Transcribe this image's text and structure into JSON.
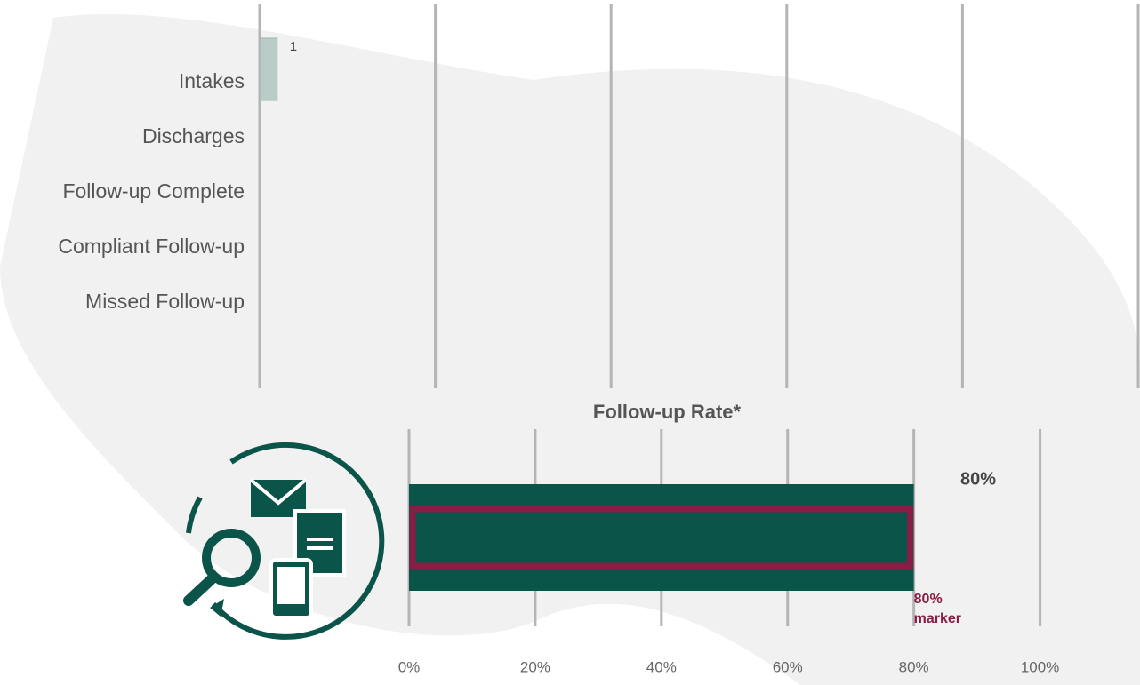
{
  "chart_data": [
    {
      "type": "bar",
      "orientation": "horizontal",
      "categories": [
        "Intakes",
        "Discharges",
        "Follow-up Complete",
        "Compliant Follow-up",
        "Missed Follow-up"
      ],
      "values": [
        1,
        null,
        null,
        null,
        null
      ],
      "value_labels": [
        "1",
        null,
        null,
        null,
        null
      ],
      "color": "#b9ccc7",
      "xlim": [
        0,
        50
      ],
      "xticks": [
        0,
        10,
        20,
        30,
        40,
        50
      ],
      "grid": true
    },
    {
      "type": "bullet",
      "title": "Follow-up Rate*",
      "orientation": "horizontal",
      "values": [
        80
      ],
      "value_labels": [
        "80%"
      ],
      "color": "#0b5449",
      "marker": {
        "value": 80,
        "label_lines": [
          "80%",
          "marker"
        ],
        "color": "#8a1d45"
      },
      "xlim": [
        0,
        115
      ],
      "xticks": [
        {
          "value": 0,
          "label": "0%"
        },
        {
          "value": 20,
          "label": "20%"
        },
        {
          "value": 40,
          "label": "40%"
        },
        {
          "value": 60,
          "label": "60%"
        },
        {
          "value": 80,
          "label": "80%"
        },
        {
          "value": 100,
          "label": "100%"
        }
      ],
      "grid": true
    }
  ]
}
